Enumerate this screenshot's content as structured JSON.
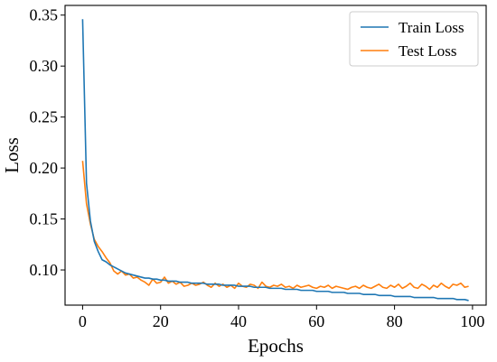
{
  "chart_data": {
    "type": "line",
    "title": "",
    "xlabel": "Epochs",
    "ylabel": "Loss",
    "xlim": [
      -4.5,
      103.5
    ],
    "ylim": [
      0.0655,
      0.3595
    ],
    "xticks": [
      0,
      20,
      40,
      60,
      80,
      100
    ],
    "yticks": [
      0.1,
      0.15,
      0.2,
      0.25,
      0.3,
      0.35
    ],
    "xtick_labels": [
      "0",
      "20",
      "40",
      "60",
      "80",
      "100"
    ],
    "ytick_labels": [
      "0.10",
      "0.15",
      "0.20",
      "0.25",
      "0.30",
      "0.35"
    ],
    "grid": false,
    "legend_position": "top-right",
    "series": [
      {
        "name": "Train Loss",
        "color": "#1f77b4",
        "x": [
          0,
          1,
          2,
          3,
          4,
          5,
          6,
          7,
          8,
          9,
          10,
          11,
          12,
          13,
          14,
          15,
          16,
          17,
          18,
          19,
          20,
          21,
          22,
          23,
          24,
          25,
          26,
          27,
          28,
          29,
          30,
          31,
          32,
          33,
          34,
          35,
          36,
          37,
          38,
          39,
          40,
          41,
          42,
          43,
          44,
          45,
          46,
          47,
          48,
          49,
          50,
          51,
          52,
          53,
          54,
          55,
          56,
          57,
          58,
          59,
          60,
          61,
          62,
          63,
          64,
          65,
          66,
          67,
          68,
          69,
          70,
          71,
          72,
          73,
          74,
          75,
          76,
          77,
          78,
          79,
          80,
          81,
          82,
          83,
          84,
          85,
          86,
          87,
          88,
          89,
          90,
          91,
          92,
          93,
          94,
          95,
          96,
          97,
          98,
          99
        ],
        "values": [
          0.346,
          0.185,
          0.148,
          0.128,
          0.118,
          0.11,
          0.108,
          0.105,
          0.103,
          0.101,
          0.099,
          0.097,
          0.096,
          0.095,
          0.094,
          0.093,
          0.092,
          0.092,
          0.091,
          0.091,
          0.09,
          0.09,
          0.089,
          0.089,
          0.089,
          0.088,
          0.088,
          0.088,
          0.087,
          0.087,
          0.087,
          0.087,
          0.086,
          0.086,
          0.086,
          0.086,
          0.085,
          0.085,
          0.085,
          0.085,
          0.084,
          0.084,
          0.084,
          0.084,
          0.083,
          0.083,
          0.083,
          0.083,
          0.082,
          0.082,
          0.082,
          0.082,
          0.081,
          0.081,
          0.081,
          0.081,
          0.08,
          0.08,
          0.08,
          0.08,
          0.079,
          0.079,
          0.079,
          0.079,
          0.078,
          0.078,
          0.078,
          0.078,
          0.077,
          0.077,
          0.077,
          0.077,
          0.076,
          0.076,
          0.076,
          0.076,
          0.075,
          0.075,
          0.075,
          0.075,
          0.074,
          0.074,
          0.074,
          0.074,
          0.074,
          0.073,
          0.073,
          0.073,
          0.073,
          0.073,
          0.073,
          0.072,
          0.072,
          0.072,
          0.072,
          0.072,
          0.071,
          0.071,
          0.071,
          0.07
        ]
      },
      {
        "name": "Test Loss",
        "color": "#ff7f0e",
        "x": [
          0,
          1,
          2,
          3,
          4,
          5,
          6,
          7,
          8,
          9,
          10,
          11,
          12,
          13,
          14,
          15,
          16,
          17,
          18,
          19,
          20,
          21,
          22,
          23,
          24,
          25,
          26,
          27,
          28,
          29,
          30,
          31,
          32,
          33,
          34,
          35,
          36,
          37,
          38,
          39,
          40,
          41,
          42,
          43,
          44,
          45,
          46,
          47,
          48,
          49,
          50,
          51,
          52,
          53,
          54,
          55,
          56,
          57,
          58,
          59,
          60,
          61,
          62,
          63,
          64,
          65,
          66,
          67,
          68,
          69,
          70,
          71,
          72,
          73,
          74,
          75,
          76,
          77,
          78,
          79,
          80,
          81,
          82,
          83,
          84,
          85,
          86,
          87,
          88,
          89,
          90,
          91,
          92,
          93,
          94,
          95,
          96,
          97,
          98,
          99
        ],
        "values": [
          0.207,
          0.165,
          0.145,
          0.13,
          0.123,
          0.118,
          0.112,
          0.107,
          0.099,
          0.096,
          0.099,
          0.095,
          0.096,
          0.092,
          0.093,
          0.09,
          0.088,
          0.085,
          0.091,
          0.087,
          0.088,
          0.093,
          0.087,
          0.089,
          0.086,
          0.088,
          0.084,
          0.085,
          0.087,
          0.085,
          0.086,
          0.088,
          0.085,
          0.083,
          0.087,
          0.084,
          0.086,
          0.083,
          0.085,
          0.082,
          0.087,
          0.084,
          0.083,
          0.086,
          0.085,
          0.082,
          0.088,
          0.084,
          0.083,
          0.085,
          0.084,
          0.086,
          0.083,
          0.084,
          0.082,
          0.085,
          0.083,
          0.084,
          0.085,
          0.083,
          0.082,
          0.084,
          0.083,
          0.085,
          0.082,
          0.084,
          0.083,
          0.082,
          0.081,
          0.083,
          0.084,
          0.082,
          0.085,
          0.083,
          0.082,
          0.084,
          0.086,
          0.083,
          0.082,
          0.085,
          0.083,
          0.086,
          0.082,
          0.084,
          0.087,
          0.083,
          0.082,
          0.086,
          0.084,
          0.081,
          0.085,
          0.083,
          0.087,
          0.084,
          0.082,
          0.086,
          0.085,
          0.087,
          0.083,
          0.084
        ]
      }
    ]
  }
}
